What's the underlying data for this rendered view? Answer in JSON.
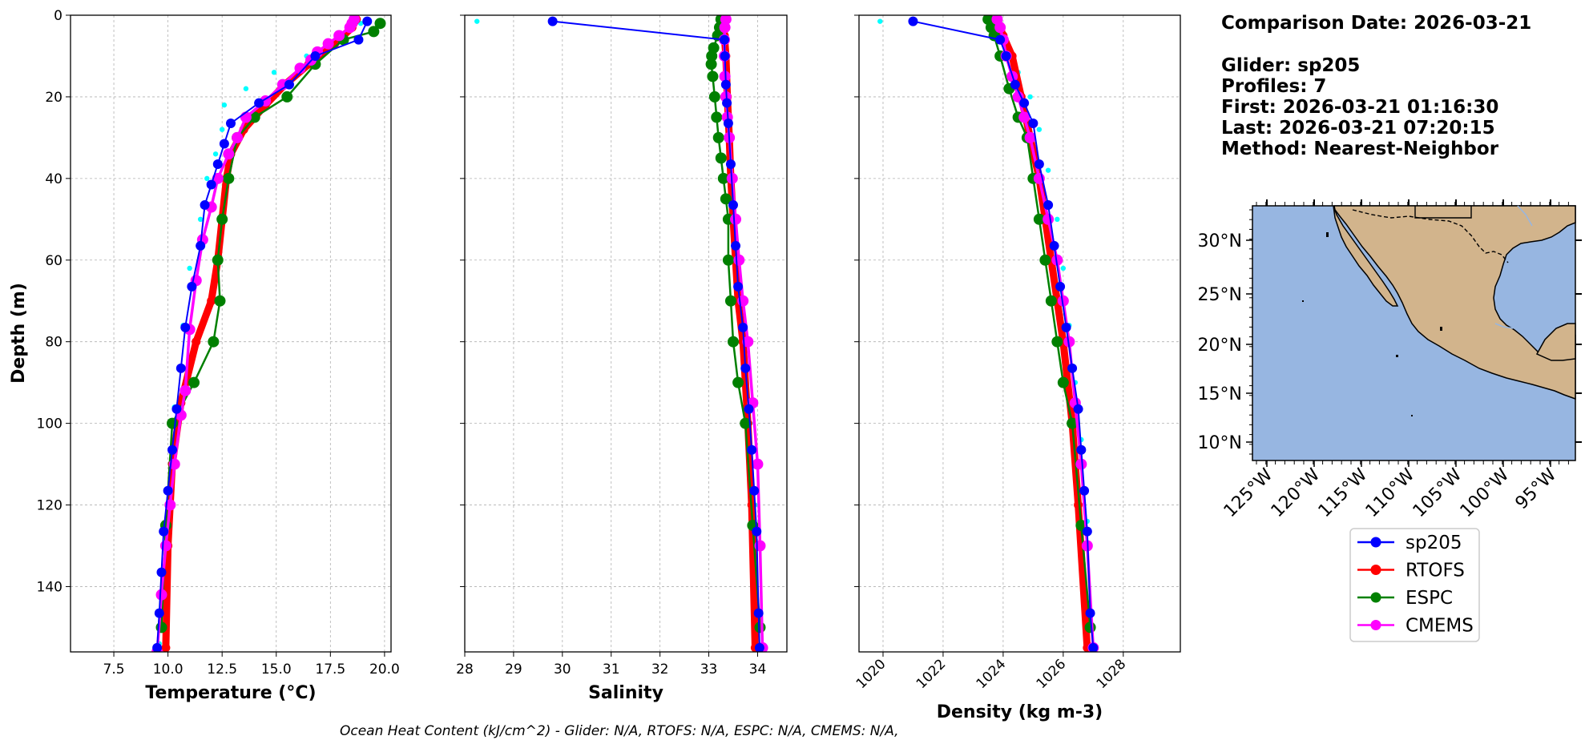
{
  "info": {
    "comparison_date": "Comparison Date: 2026-03-21",
    "glider": "Glider: sp205",
    "profiles": "Profiles: 7",
    "first": "First: 2026-03-21 01:16:30",
    "last": "Last: 2026-03-21 07:20:15",
    "method": "Method: Nearest-Neighbor"
  },
  "footer": "Ocean Heat Content (kJ/cm^2) - Glider: N/A,  RTOFS: N/A,  ESPC: N/A,  CMEMS: N/A,",
  "colors": {
    "sp205": "#0000ff",
    "sp205_raw": "#00ffff",
    "RTOFS": "#ff0000",
    "ESPC": "#008000",
    "CMEMS": "#ff00ff",
    "ocean": "#97b6e1",
    "land": "#d2b48c"
  },
  "legend": [
    "sp205",
    "RTOFS",
    "ESPC",
    "CMEMS"
  ],
  "map": {
    "lat_labels": [
      "10°N",
      "15°N",
      "20°N",
      "25°N",
      "30°N"
    ],
    "lon_labels": [
      "125°W",
      "120°W",
      "115°W",
      "110°W",
      "105°W",
      "100°W",
      "95°W"
    ]
  },
  "chart_data": [
    {
      "type": "line",
      "title": "",
      "xlabel": "Temperature (°C)",
      "ylabel": "Depth (m)",
      "xlim": [
        5.5,
        20.3
      ],
      "ylim": [
        156,
        0
      ],
      "xticks": [
        "7.5",
        "10.0",
        "12.5",
        "15.0",
        "17.5",
        "20.0"
      ],
      "yticks": [
        "0",
        "20",
        "40",
        "60",
        "80",
        "100",
        "120",
        "140"
      ],
      "raw": {
        "name": "sp205 (raw)",
        "x": [
          18.9,
          17.8,
          16.4,
          14.9,
          13.6,
          12.6,
          12.5,
          12.2,
          11.8,
          11.5,
          11.0,
          10.7,
          10.3,
          10.0,
          9.8,
          9.6
        ],
        "y": [
          2,
          6,
          10,
          14,
          18,
          22,
          28,
          34,
          40,
          50,
          62,
          76,
          96,
          116,
          136,
          154
        ]
      },
      "series": [
        {
          "name": "sp205",
          "x": [
            19.2,
            18.8,
            16.8,
            15.6,
            14.2,
            12.9,
            12.6,
            12.3,
            12.0,
            11.7,
            11.5,
            11.1,
            10.8,
            10.6,
            10.4,
            10.2,
            10.0,
            9.8,
            9.7,
            9.6,
            9.5
          ],
          "y": [
            1.5,
            6,
            10,
            17,
            21.5,
            26.5,
            31.5,
            36.5,
            41.5,
            46.5,
            56.5,
            66.5,
            76.5,
            86.5,
            96.5,
            106.5,
            116.5,
            126.5,
            136.5,
            146.5,
            155
          ]
        },
        {
          "name": "RTOFS",
          "x": [
            18.7,
            18.5,
            17.7,
            16.5,
            15.4,
            14.5,
            13.5,
            12.9,
            12.7,
            12.5,
            12.3,
            12.0,
            11.3,
            10.6,
            10.2,
            10.0,
            9.9
          ],
          "y": [
            1,
            3,
            7,
            12,
            17,
            22,
            28,
            34,
            40,
            50,
            60,
            70,
            80,
            95,
            110,
            130,
            155
          ]
        },
        {
          "name": "ESPC",
          "x": [
            19.8,
            19.5,
            18.1,
            16.8,
            15.5,
            14.0,
            13.2,
            12.8,
            12.5,
            12.3,
            12.4,
            12.1,
            11.2,
            10.2,
            9.9,
            9.7
          ],
          "y": [
            2,
            4,
            6,
            12,
            20,
            25,
            30,
            40,
            50,
            60,
            70,
            80,
            90,
            100,
            125,
            150
          ]
        },
        {
          "name": "CMEMS",
          "x": [
            18.6,
            18.5,
            18.4,
            17.9,
            17.4,
            16.9,
            16.6,
            16.1,
            15.3,
            14.5,
            13.6,
            13.2,
            12.8,
            12.3,
            12.0,
            11.6,
            11.3,
            11.0,
            10.8,
            10.6,
            10.3,
            10.1,
            9.9,
            9.7,
            9.5
          ],
          "y": [
            1,
            2,
            3,
            5,
            7,
            9,
            11,
            13,
            17,
            21,
            25,
            30,
            34,
            40,
            47,
            55,
            65,
            77,
            92,
            98,
            110,
            120,
            130,
            142,
            156
          ]
        }
      ]
    },
    {
      "type": "line",
      "title": "",
      "xlabel": "Salinity",
      "ylabel": "",
      "xlim": [
        28.0,
        34.6
      ],
      "ylim": [
        156,
        0
      ],
      "xticks": [
        "28",
        "29",
        "30",
        "31",
        "32",
        "33",
        "34"
      ],
      "raw": {
        "name": "sp205 (raw)",
        "x": [
          28.25,
          33.33,
          33.34,
          33.36,
          33.38,
          33.42,
          33.48,
          33.55,
          33.62,
          33.68,
          33.75,
          33.85,
          33.95,
          34.05
        ],
        "y": [
          1.5,
          6,
          10,
          20,
          30,
          40,
          50,
          60,
          70,
          80,
          90,
          100,
          120,
          150
        ]
      },
      "series": [
        {
          "name": "sp205",
          "x": [
            29.8,
            33.32,
            33.33,
            33.35,
            33.37,
            33.4,
            33.45,
            33.5,
            33.55,
            33.6,
            33.7,
            33.75,
            33.82,
            33.88,
            33.93,
            33.98,
            34.02,
            34.04
          ],
          "y": [
            1.5,
            6,
            10,
            17,
            21.5,
            26.5,
            36.5,
            46.5,
            56.5,
            66.5,
            76.5,
            86.5,
            96.5,
            106.5,
            116.5,
            126.5,
            146.5,
            155
          ]
        },
        {
          "name": "RTOFS",
          "x": [
            33.3,
            33.32,
            33.35,
            33.38,
            33.42,
            33.45,
            33.5,
            33.55,
            33.6,
            33.7,
            33.8,
            33.88,
            33.95
          ],
          "y": [
            1,
            5,
            10,
            20,
            30,
            40,
            50,
            60,
            70,
            80,
            100,
            120,
            155
          ]
        },
        {
          "name": "ESPC",
          "x": [
            33.25,
            33.22,
            33.18,
            33.1,
            33.06,
            33.05,
            33.08,
            33.12,
            33.16,
            33.2,
            33.25,
            33.3,
            33.35,
            33.4,
            33.4,
            33.45,
            33.5,
            33.6,
            33.75,
            33.9,
            34.05
          ],
          "y": [
            1,
            3,
            5,
            8,
            10,
            12,
            15,
            20,
            25,
            30,
            35,
            40,
            45,
            50,
            60,
            70,
            80,
            90,
            100,
            125,
            150
          ]
        },
        {
          "name": "CMEMS",
          "x": [
            33.35,
            33.33,
            33.32,
            33.32,
            33.33,
            33.35,
            33.38,
            33.42,
            33.48,
            33.55,
            33.62,
            33.7,
            33.8,
            33.9,
            34.0,
            34.05,
            34.1
          ],
          "y": [
            1,
            3,
            6,
            10,
            15,
            20,
            25,
            30,
            40,
            50,
            60,
            70,
            80,
            95,
            110,
            130,
            155
          ]
        }
      ]
    },
    {
      "type": "line",
      "title": "",
      "xlabel": "Density (kg m-3)",
      "ylabel": "",
      "xlim": [
        1019.2,
        1029.9
      ],
      "ylim": [
        156,
        0
      ],
      "xticks": [
        "1020",
        "1022",
        "1024",
        "1026",
        "1028"
      ],
      "raw": {
        "name": "sp205 (raw)",
        "x": [
          1019.9,
          1023.9,
          1024.2,
          1024.5,
          1024.9,
          1025.2,
          1025.5,
          1025.8,
          1026.0,
          1026.2,
          1026.4,
          1026.6,
          1026.8,
          1027.0
        ],
        "y": [
          1.5,
          6,
          10,
          14,
          20,
          28,
          38,
          50,
          62,
          76,
          90,
          104,
          124,
          150
        ]
      },
      "series": [
        {
          "name": "sp205",
          "x": [
            1021.0,
            1023.9,
            1024.1,
            1024.4,
            1024.7,
            1025.0,
            1025.2,
            1025.5,
            1025.7,
            1025.9,
            1026.1,
            1026.3,
            1026.5,
            1026.6,
            1026.7,
            1026.8,
            1026.9,
            1027.0
          ],
          "y": [
            1.5,
            6,
            10,
            17,
            21.5,
            26.5,
            36.5,
            46.5,
            56.5,
            66.5,
            76.5,
            86.5,
            96.5,
            106.5,
            116.5,
            126.5,
            146.5,
            155
          ]
        },
        {
          "name": "RTOFS",
          "x": [
            1023.8,
            1024.0,
            1024.3,
            1024.6,
            1024.9,
            1025.2,
            1025.4,
            1025.6,
            1025.8,
            1026.0,
            1026.3,
            1026.5,
            1026.8
          ],
          "y": [
            1,
            5,
            10,
            20,
            30,
            40,
            50,
            60,
            70,
            80,
            100,
            120,
            155
          ]
        },
        {
          "name": "ESPC",
          "x": [
            1023.5,
            1023.6,
            1023.7,
            1023.9,
            1024.2,
            1024.5,
            1024.8,
            1025.0,
            1025.2,
            1025.4,
            1025.6,
            1025.8,
            1026.0,
            1026.3,
            1026.6,
            1026.9
          ],
          "y": [
            1,
            3,
            5,
            10,
            18,
            25,
            30,
            40,
            50,
            60,
            70,
            80,
            90,
            100,
            125,
            150
          ]
        },
        {
          "name": "CMEMS",
          "x": [
            1023.8,
            1023.9,
            1024.0,
            1024.1,
            1024.3,
            1024.5,
            1024.7,
            1024.9,
            1025.2,
            1025.5,
            1025.8,
            1026.0,
            1026.2,
            1026.4,
            1026.6,
            1026.8,
            1027.0
          ],
          "y": [
            1,
            3,
            6,
            10,
            15,
            20,
            25,
            30,
            40,
            50,
            60,
            70,
            80,
            95,
            110,
            130,
            155
          ]
        }
      ]
    }
  ]
}
